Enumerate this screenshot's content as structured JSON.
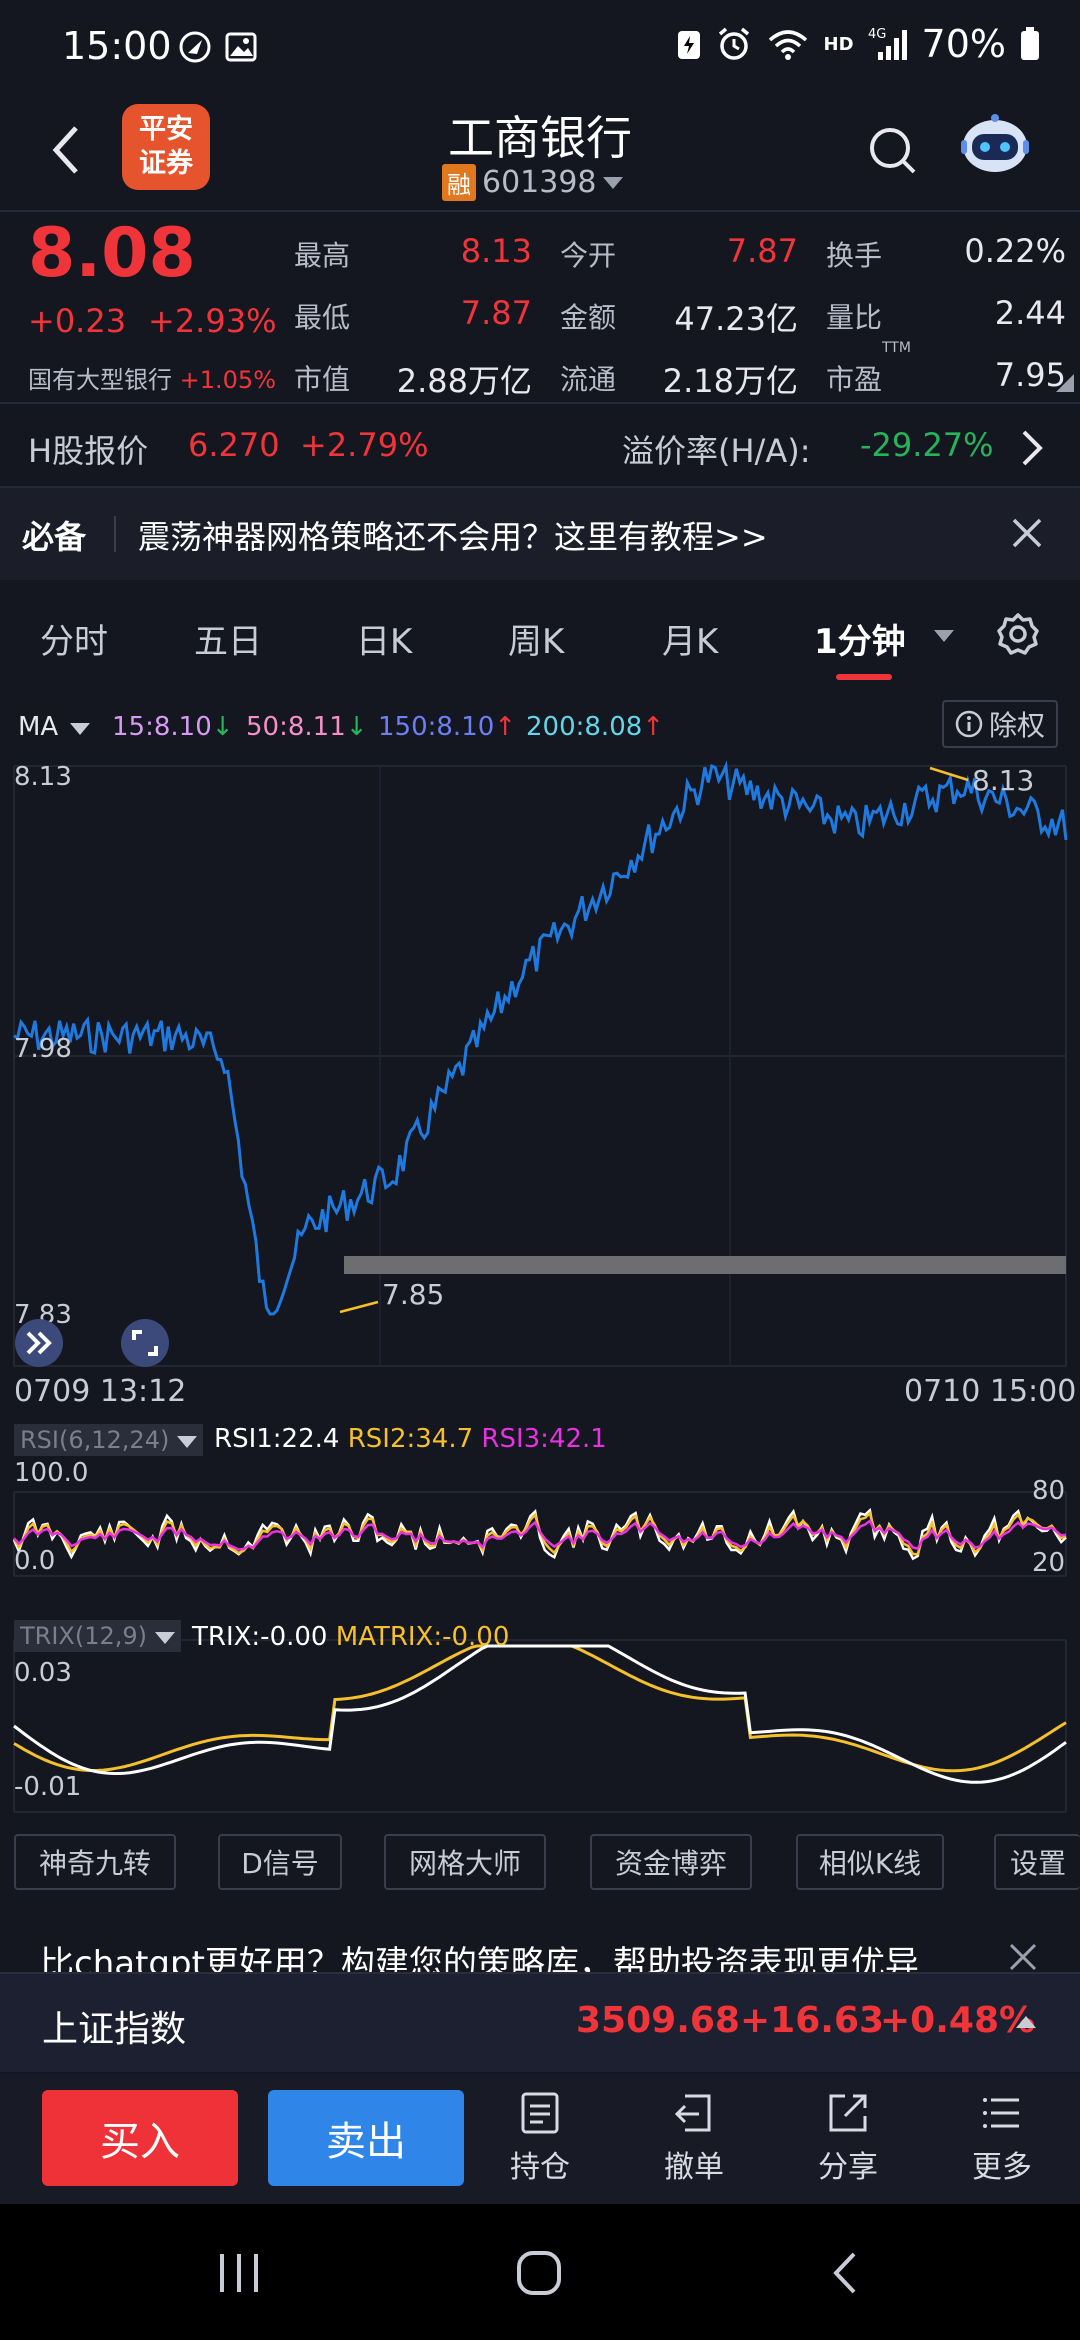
{
  "status_bar": {
    "time": "15:00",
    "battery": "70%"
  },
  "header": {
    "brand": [
      "平安",
      "证券"
    ],
    "title": "工商银行",
    "margin_tag": "融",
    "code": "601398"
  },
  "quote": {
    "price": "8.08",
    "change": "+0.23",
    "change_pct": "+2.93%",
    "sector_name": "国有大型银行",
    "sector_chg": "+1.05%",
    "fields": {
      "high_label": "最高",
      "high": "8.13",
      "open_label": "今开",
      "open": "7.87",
      "turnover_label": "换手",
      "turnover": "0.22%",
      "low_label": "最低",
      "low": "7.87",
      "amount_label": "金额",
      "amount": "47.23亿",
      "vol_ratio_label": "量比",
      "vol_ratio": "2.44",
      "mktcap_label": "市值",
      "mktcap": "2.88万亿",
      "float_label": "流通",
      "float": "2.18万亿",
      "pe_label": "市盈",
      "pe_sup": "TTM",
      "pe": "7.95"
    }
  },
  "h_share": {
    "label": "H股报价",
    "price": "6.270",
    "chg": "+2.79%",
    "premium_label": "溢价率(H/A):",
    "premium": "-29.27%"
  },
  "notice": {
    "tag": "必备",
    "text": "震荡神器网格策略还不会用？这里有教程>>"
  },
  "tabs": [
    "分时",
    "五日",
    "日K",
    "周K",
    "月K",
    "1分钟"
  ],
  "ma": {
    "label": "MA",
    "ma15": "15:8.10",
    "ma50": "50:8.11",
    "ma150": "150:8.10",
    "ma200": "200:8.08",
    "chuquan": "除权"
  },
  "chart": {
    "y_top": "8.13",
    "y_mid": "7.98",
    "y_bottom": "7.83",
    "max_label": "8.13",
    "min_label": "7.85",
    "x_start": "0709 13:12",
    "x_end": "0710 15:00"
  },
  "rsi": {
    "tag": "RSI(6,12,24)",
    "rsi1": "RSI1:22.4",
    "rsi2": "RSI2:34.7",
    "rsi3": "RSI3:42.1",
    "top": "100.0",
    "bottom": "0.0",
    "r80": "80",
    "r20": "20"
  },
  "trix": {
    "tag": "TRIX(12,9)",
    "trix": "TRIX:-0.00",
    "matrix": "MATRIX:-0.00",
    "top": "0.03",
    "bottom": "-0.01"
  },
  "tools": [
    "神奇九转",
    "D信号",
    "网格大师",
    "资金博弈",
    "相似K线",
    "设置"
  ],
  "ad": {
    "text": "比chatgpt更好用？构建您的策略库，帮助投资表现更优异"
  },
  "index": {
    "name": "上证指数",
    "value": "3509.68",
    "chg": "+16.63",
    "pct": "+0.48%"
  },
  "trade": {
    "buy": "买入",
    "sell": "卖出",
    "hold": "持仓",
    "cancel": "撤单",
    "share": "分享",
    "more": "更多"
  },
  "colors": {
    "up": "#f0353a",
    "down": "#26b35a",
    "price_line": "#1f7ae0",
    "accent": "#f6c02a"
  }
}
